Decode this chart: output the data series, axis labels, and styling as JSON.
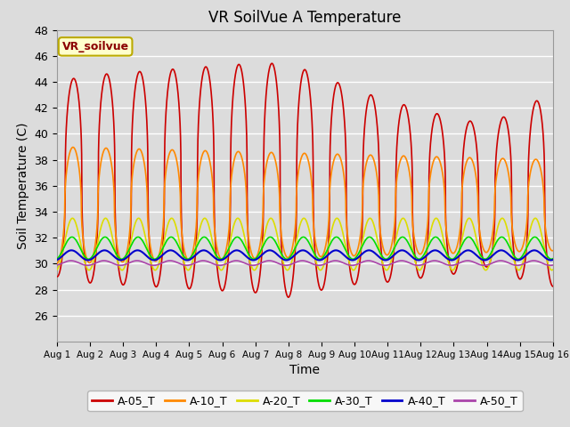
{
  "title": "VR SoilVue A Temperature",
  "xlabel": "Time",
  "ylabel": "Soil Temperature (C)",
  "ylim": [
    24,
    48
  ],
  "xlim": [
    0,
    15
  ],
  "bg_color": "#dcdcdc",
  "fig_bg_color": "#dcdcdc",
  "grid_color": "white",
  "series": {
    "A-05_T": {
      "color": "#cc0000",
      "lw": 1.2
    },
    "A-10_T": {
      "color": "#ff8800",
      "lw": 1.2
    },
    "A-20_T": {
      "color": "#dddd00",
      "lw": 1.2
    },
    "A-30_T": {
      "color": "#00dd00",
      "lw": 1.2
    },
    "A-40_T": {
      "color": "#0000cc",
      "lw": 1.5
    },
    "A-50_T": {
      "color": "#aa44aa",
      "lw": 1.2
    }
  },
  "xtick_labels": [
    "Aug 1",
    "Aug 2",
    "Aug 3",
    "Aug 4",
    "Aug 5",
    "Aug 6",
    "Aug 7",
    "Aug 8",
    "Aug 9",
    "Aug 10",
    "Aug 11",
    "Aug 12",
    "Aug 13",
    "Aug 14",
    "Aug 15",
    "Aug 16"
  ],
  "ytick_values": [
    26,
    28,
    30,
    32,
    34,
    36,
    38,
    40,
    42,
    44,
    46,
    48
  ],
  "annotation_text": "VR_soilvue",
  "annotation_color": "#8b0000",
  "annotation_bg": "#ffffcc",
  "annotation_border": "#bbaa00"
}
